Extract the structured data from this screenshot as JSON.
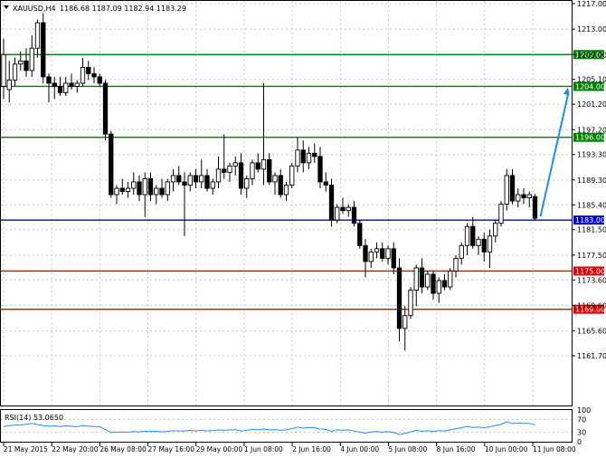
{
  "header": {
    "symbol": "XAUUSD,H4",
    "ohlc": "1186.68 1187.09 1182.94 1183.29",
    "menu_icon": "triangle-down-icon"
  },
  "colors": {
    "background": "#ffffff",
    "grid": "#c8c8c8",
    "candle": "#000000",
    "support_blue": "#0000cc",
    "resistance_green": "#008000",
    "level_red": "#e00000",
    "forecast_arrow": "#1e90d8",
    "rsi_line": "#1e90ff"
  },
  "price_axis": {
    "ticks": [
      "1217.00",
      "1213.00",
      "1209.00",
      "1205.10",
      "1201.20",
      "1197.20",
      "1193.30",
      "1189.30",
      "1185.40",
      "1181.50",
      "1177.50",
      "1173.60",
      "1169.60",
      "1165.60",
      "1161.70"
    ]
  },
  "levels": [
    {
      "price": 1209.0,
      "label": "1209.00",
      "color": "green"
    },
    {
      "price": 1204.0,
      "label": "1204.00",
      "color": "green"
    },
    {
      "price": 1196.0,
      "label": "1196.00",
      "color": "green"
    },
    {
      "price": 1183.0,
      "label": "1183.00",
      "color": "blue"
    },
    {
      "price": 1175.0,
      "label": "1175.00",
      "color": "red"
    },
    {
      "price": 1169.0,
      "label": "1169.00",
      "color": "red"
    }
  ],
  "time_axis": {
    "labels": [
      "21 May 2015",
      "22 May 20:00",
      "26 May 08:00",
      "27 May 16:00",
      "29 May 00:00",
      "1 Jun 08:00",
      "2 Jun 16:00",
      "4 Jun 00:00",
      "5 Jun 08:00",
      "8 Jun 16:00",
      "10 Jun 00:00",
      "11 Jun 08:00"
    ]
  },
  "rsi": {
    "title": "RSI(14) 53.0650",
    "ticks": [
      "100",
      "70",
      "30",
      "0"
    ]
  },
  "chart_data": {
    "type": "candlestick",
    "symbol": "XAUUSD",
    "timeframe": "H4",
    "ylim": [
      1161.7,
      1217.0
    ],
    "candles": [
      [
        1204.0,
        1211.5,
        1202.0,
        1209.0
      ],
      [
        1203.5,
        1208.0,
        1201.5,
        1205.0
      ],
      [
        1205.0,
        1208.5,
        1204.0,
        1207.5
      ],
      [
        1207.5,
        1209.5,
        1206.5,
        1208.0
      ],
      [
        1208.0,
        1210.0,
        1205.5,
        1206.5
      ],
      [
        1206.5,
        1212.0,
        1205.5,
        1210.0
      ],
      [
        1210.0,
        1214.5,
        1208.5,
        1214.0
      ],
      [
        1214.0,
        1215.5,
        1204.5,
        1205.5
      ],
      [
        1205.5,
        1206.0,
        1201.5,
        1204.5
      ],
      [
        1204.5,
        1205.5,
        1202.0,
        1204.0
      ],
      [
        1204.0,
        1205.5,
        1202.5,
        1203.0
      ],
      [
        1203.0,
        1205.5,
        1202.5,
        1204.5
      ],
      [
        1204.5,
        1206.0,
        1203.5,
        1204.0
      ],
      [
        1204.0,
        1205.0,
        1203.0,
        1204.5
      ],
      [
        1204.5,
        1208.5,
        1204.0,
        1207.0
      ],
      [
        1207.0,
        1208.0,
        1205.0,
        1206.0
      ],
      [
        1206.0,
        1207.0,
        1204.5,
        1205.5
      ],
      [
        1205.5,
        1206.0,
        1204.0,
        1204.5
      ],
      [
        1204.5,
        1205.0,
        1195.5,
        1196.5
      ],
      [
        1196.5,
        1197.0,
        1186.5,
        1187.0
      ],
      [
        1187.0,
        1188.5,
        1185.5,
        1188.0
      ],
      [
        1188.0,
        1189.5,
        1187.0,
        1187.5
      ],
      [
        1187.5,
        1189.0,
        1186.5,
        1188.0
      ],
      [
        1188.0,
        1190.5,
        1187.0,
        1189.0
      ],
      [
        1189.0,
        1190.0,
        1186.0,
        1187.0
      ],
      [
        1187.0,
        1190.5,
        1183.5,
        1189.5
      ],
      [
        1189.5,
        1190.5,
        1186.0,
        1187.0
      ],
      [
        1187.0,
        1188.5,
        1185.5,
        1188.0
      ],
      [
        1188.0,
        1189.5,
        1186.5,
        1187.0
      ],
      [
        1187.0,
        1189.5,
        1186.0,
        1189.0
      ],
      [
        1189.0,
        1191.0,
        1187.5,
        1190.0
      ],
      [
        1190.0,
        1191.5,
        1188.5,
        1189.0
      ],
      [
        1189.0,
        1190.5,
        1180.5,
        1188.5
      ],
      [
        1188.5,
        1190.5,
        1187.5,
        1190.0
      ],
      [
        1190.0,
        1191.0,
        1188.0,
        1189.0
      ],
      [
        1189.0,
        1192.5,
        1188.0,
        1190.0
      ],
      [
        1190.0,
        1191.0,
        1187.5,
        1188.0
      ],
      [
        1188.0,
        1189.5,
        1187.0,
        1189.0
      ],
      [
        1189.0,
        1193.0,
        1188.0,
        1191.0
      ],
      [
        1191.0,
        1196.5,
        1189.5,
        1190.5
      ],
      [
        1190.5,
        1192.0,
        1189.0,
        1191.5
      ],
      [
        1191.5,
        1193.0,
        1190.0,
        1192.0
      ],
      [
        1192.0,
        1193.5,
        1187.0,
        1188.0
      ],
      [
        1188.0,
        1190.0,
        1186.5,
        1189.5
      ],
      [
        1189.5,
        1192.5,
        1188.5,
        1192.0
      ],
      [
        1192.0,
        1193.5,
        1190.5,
        1191.0
      ],
      [
        1191.0,
        1204.5,
        1188.5,
        1192.5
      ],
      [
        1192.5,
        1193.5,
        1188.5,
        1189.0
      ],
      [
        1189.0,
        1190.5,
        1187.0,
        1190.0
      ],
      [
        1190.0,
        1191.0,
        1186.5,
        1187.0
      ],
      [
        1187.0,
        1189.0,
        1186.0,
        1188.5
      ],
      [
        1188.5,
        1192.0,
        1188.0,
        1191.5
      ],
      [
        1191.5,
        1196.0,
        1190.5,
        1194.0
      ],
      [
        1194.0,
        1195.5,
        1190.5,
        1192.0
      ],
      [
        1192.0,
        1194.5,
        1191.0,
        1193.5
      ],
      [
        1193.5,
        1195.0,
        1192.0,
        1193.0
      ],
      [
        1193.0,
        1194.5,
        1188.0,
        1189.0
      ],
      [
        1189.0,
        1190.5,
        1187.5,
        1188.5
      ],
      [
        1188.5,
        1189.5,
        1182.0,
        1183.0
      ],
      [
        1183.0,
        1185.5,
        1182.5,
        1185.0
      ],
      [
        1185.0,
        1186.5,
        1184.0,
        1184.5
      ],
      [
        1184.5,
        1185.5,
        1183.5,
        1185.0
      ],
      [
        1185.0,
        1186.0,
        1182.0,
        1182.5
      ],
      [
        1182.5,
        1183.0,
        1178.5,
        1179.0
      ],
      [
        1179.0,
        1180.0,
        1174.0,
        1176.5
      ],
      [
        1176.5,
        1178.5,
        1175.5,
        1178.0
      ],
      [
        1178.0,
        1179.5,
        1177.0,
        1178.5
      ],
      [
        1178.5,
        1179.5,
        1176.5,
        1177.0
      ],
      [
        1177.0,
        1179.0,
        1176.0,
        1178.5
      ],
      [
        1178.5,
        1179.5,
        1174.5,
        1175.5
      ],
      [
        1175.5,
        1177.0,
        1164.0,
        1166.0
      ],
      [
        1166.0,
        1169.5,
        1162.5,
        1168.0
      ],
      [
        1168.0,
        1172.5,
        1167.5,
        1172.0
      ],
      [
        1172.0,
        1176.0,
        1169.5,
        1175.5
      ],
      [
        1175.5,
        1177.0,
        1171.5,
        1172.5
      ],
      [
        1172.5,
        1175.0,
        1172.0,
        1174.5
      ],
      [
        1174.5,
        1175.0,
        1170.5,
        1171.5
      ],
      [
        1171.5,
        1174.0,
        1170.0,
        1173.5
      ],
      [
        1173.5,
        1174.5,
        1172.0,
        1172.5
      ],
      [
        1172.5,
        1175.5,
        1172.0,
        1175.0
      ],
      [
        1175.0,
        1177.5,
        1174.0,
        1177.0
      ],
      [
        1177.0,
        1179.5,
        1176.0,
        1179.0
      ],
      [
        1179.0,
        1182.5,
        1177.5,
        1182.0
      ],
      [
        1182.0,
        1183.5,
        1178.5,
        1179.0
      ],
      [
        1179.0,
        1180.5,
        1177.5,
        1180.0
      ],
      [
        1180.0,
        1181.0,
        1176.5,
        1178.0
      ],
      [
        1178.0,
        1181.5,
        1175.5,
        1180.5
      ],
      [
        1180.5,
        1183.0,
        1179.5,
        1182.5
      ],
      [
        1182.5,
        1186.0,
        1182.0,
        1185.5
      ],
      [
        1185.5,
        1191.0,
        1184.5,
        1190.0
      ],
      [
        1190.0,
        1191.0,
        1185.5,
        1186.0
      ],
      [
        1186.0,
        1188.0,
        1185.0,
        1187.0
      ],
      [
        1187.0,
        1188.0,
        1185.5,
        1186.5
      ],
      [
        1186.5,
        1187.5,
        1185.0,
        1187.0
      ],
      [
        1186.68,
        1187.09,
        1182.94,
        1183.29
      ]
    ],
    "horizontal_levels": [
      1209.0,
      1204.0,
      1196.0,
      1183.0,
      1175.0,
      1169.0
    ],
    "forecast_arrow": {
      "from": 1183.3,
      "to": 1204.0
    },
    "rsi": {
      "period": 14,
      "last": 53.065,
      "ylim": [
        0,
        100
      ],
      "levels": [
        70,
        30
      ],
      "values": [
        48,
        51,
        52,
        53,
        55,
        58,
        54,
        51,
        49,
        50,
        48,
        50,
        49,
        47,
        51,
        49,
        48,
        47,
        38,
        29,
        30,
        31,
        30,
        32,
        31,
        33,
        32,
        33,
        31,
        33,
        35,
        34,
        34,
        36,
        34,
        36,
        34,
        35,
        37,
        36,
        37,
        38,
        34,
        36,
        39,
        38,
        40,
        37,
        38,
        36,
        38,
        41,
        46,
        43,
        45,
        44,
        40,
        39,
        33,
        37,
        36,
        37,
        34,
        30,
        27,
        31,
        32,
        30,
        32,
        29,
        23,
        26,
        31,
        36,
        33,
        35,
        32,
        35,
        34,
        37,
        41,
        44,
        48,
        45,
        46,
        44,
        47,
        51,
        55,
        63,
        57,
        59,
        58,
        58,
        53
      ]
    }
  }
}
